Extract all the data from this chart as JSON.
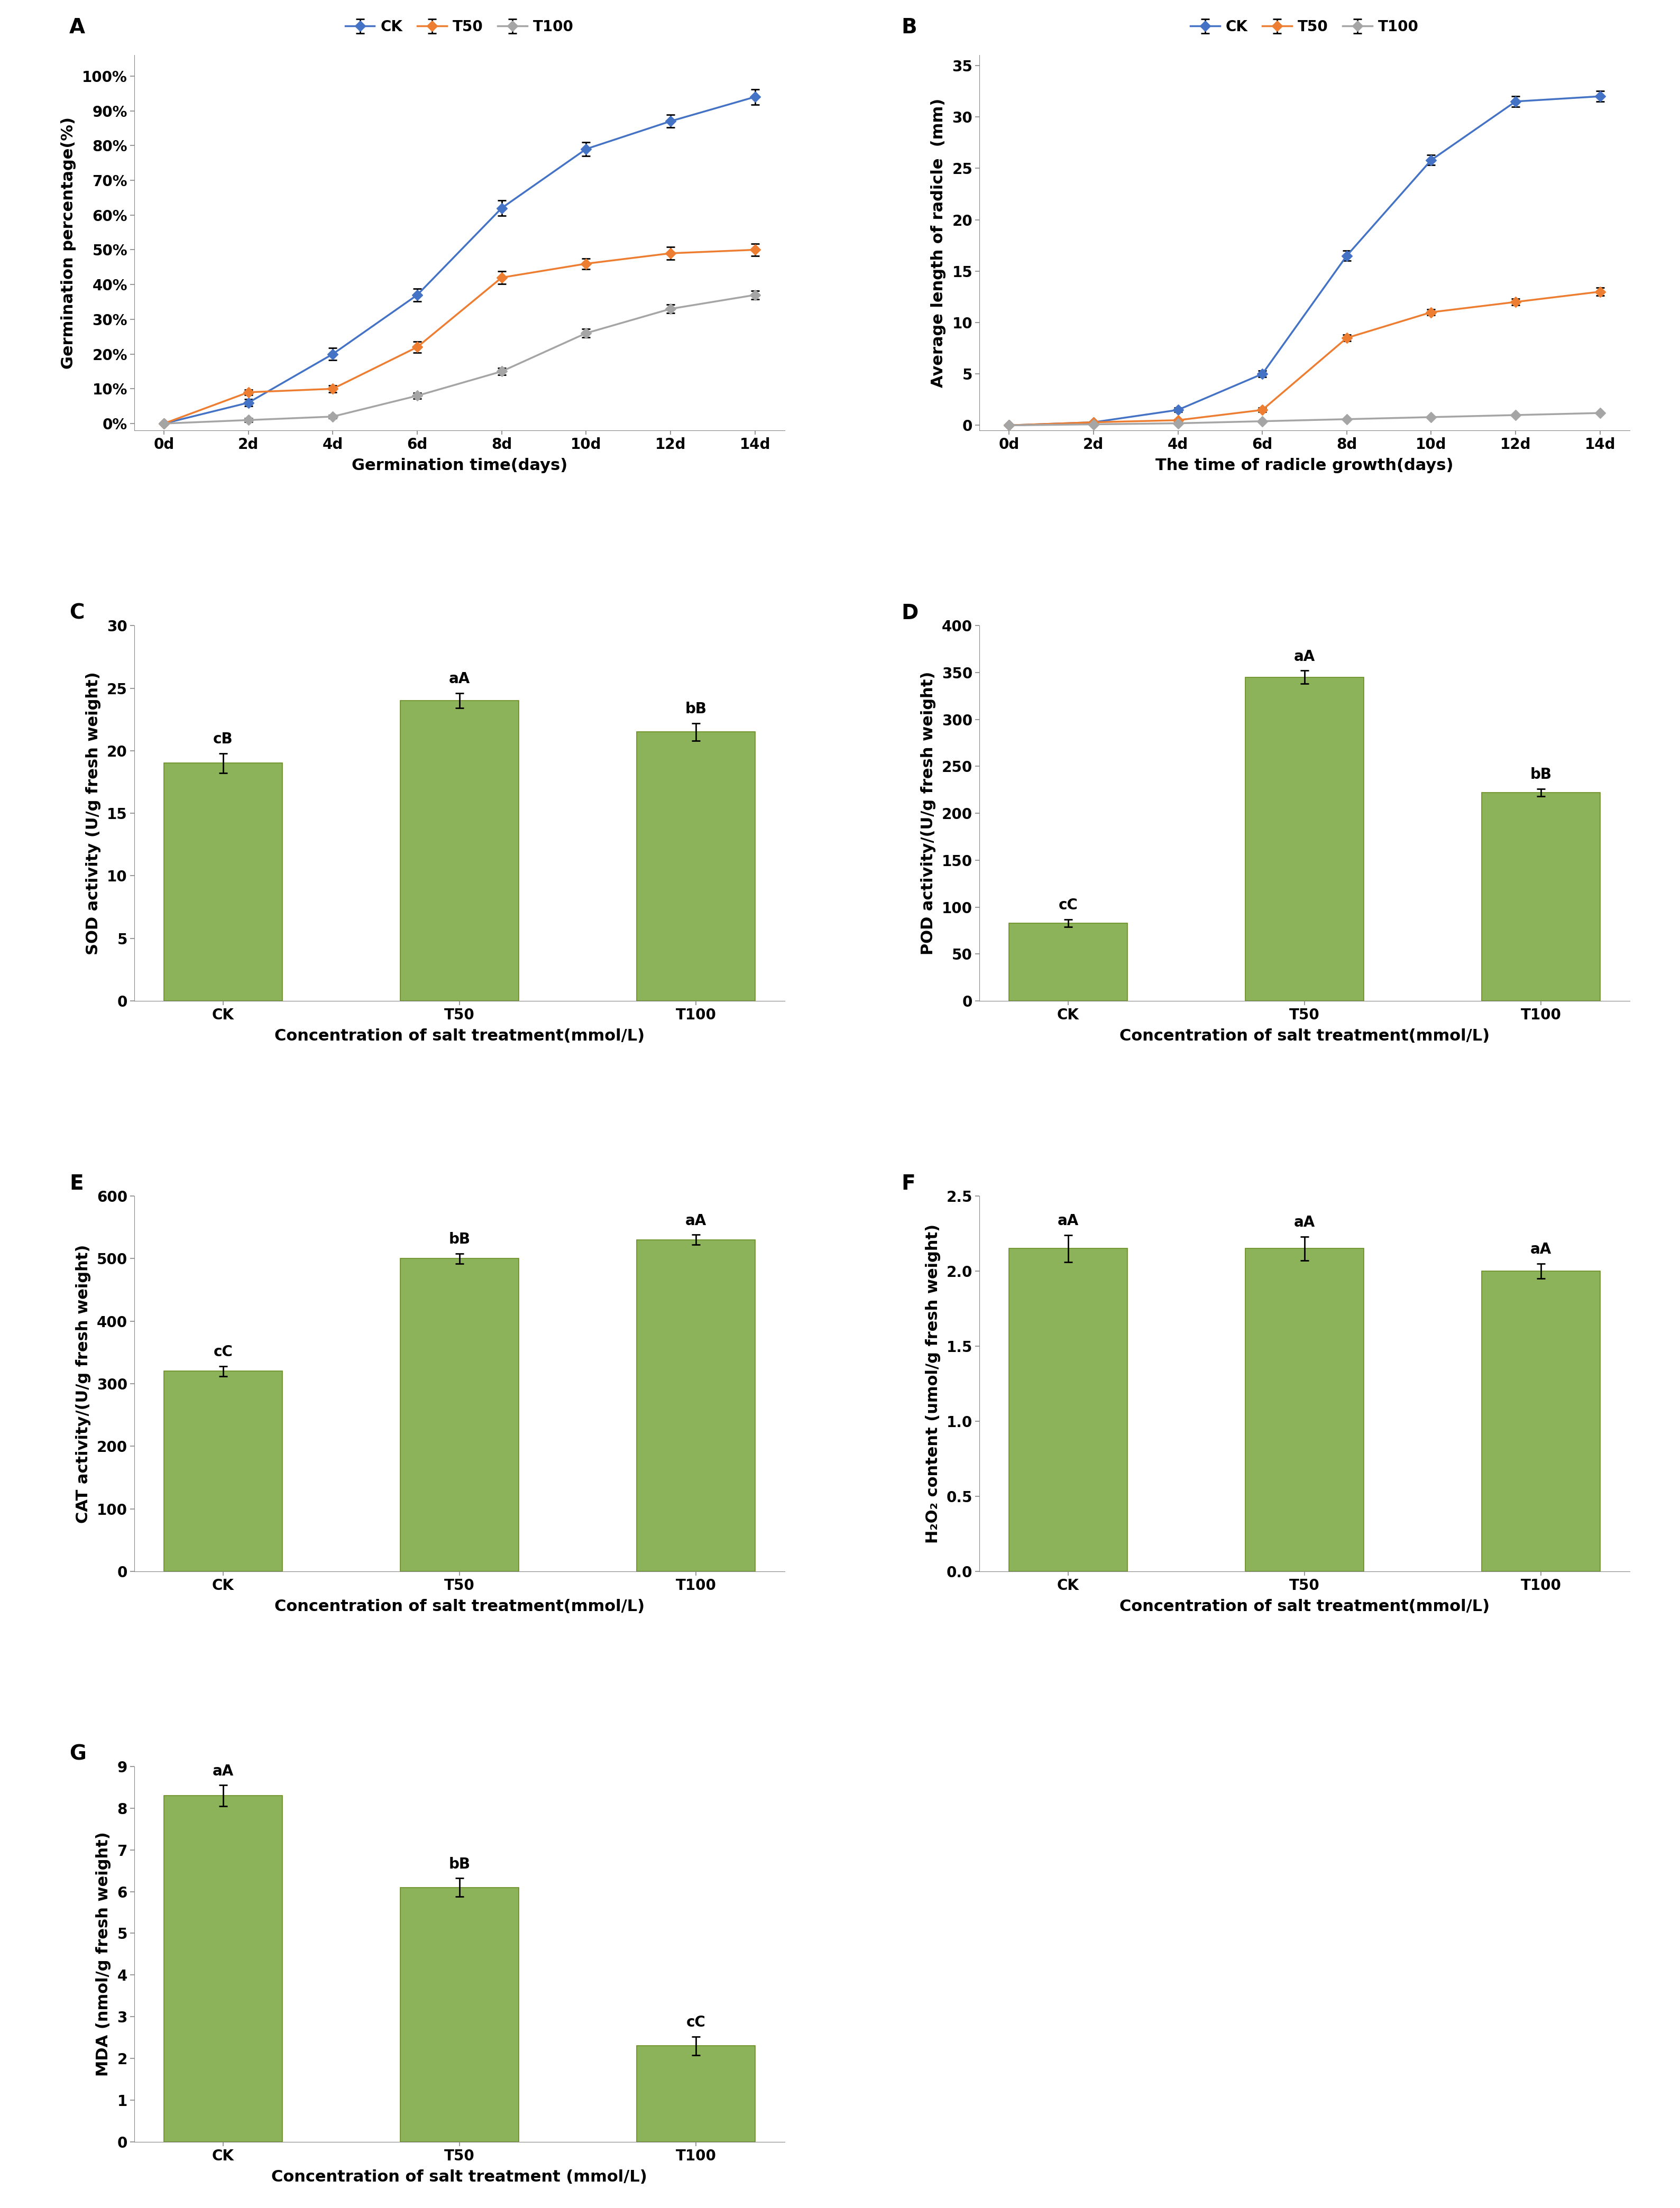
{
  "panel_A": {
    "label": "A",
    "x": [
      0,
      2,
      4,
      6,
      8,
      10,
      12,
      14
    ],
    "CK_y": [
      0,
      0.06,
      0.2,
      0.37,
      0.62,
      0.79,
      0.87,
      0.94
    ],
    "T50_y": [
      0,
      0.09,
      0.1,
      0.22,
      0.42,
      0.46,
      0.49,
      0.5
    ],
    "T100_y": [
      0,
      0.01,
      0.02,
      0.08,
      0.15,
      0.26,
      0.33,
      0.37
    ],
    "CK_err": [
      0,
      0.01,
      0.018,
      0.018,
      0.022,
      0.02,
      0.018,
      0.022
    ],
    "T50_err": [
      0,
      0.008,
      0.01,
      0.016,
      0.018,
      0.015,
      0.018,
      0.018
    ],
    "T100_err": [
      0,
      0.005,
      0.005,
      0.008,
      0.01,
      0.012,
      0.012,
      0.012
    ],
    "xlabel": "Germination time(days)",
    "ylabel": "Germination percentage(%)",
    "yticks": [
      0.0,
      0.1,
      0.2,
      0.3,
      0.4,
      0.5,
      0.6,
      0.7,
      0.8,
      0.9,
      1.0
    ],
    "ytick_labels": [
      "0%",
      "10%",
      "20%",
      "30%",
      "40%",
      "50%",
      "60%",
      "70%",
      "80%",
      "90%",
      "100%"
    ],
    "xtick_labels": [
      "0d",
      "2d",
      "4d",
      "6d",
      "8d",
      "10d",
      "12d",
      "14d"
    ],
    "ylim": [
      -0.02,
      1.06
    ]
  },
  "panel_B": {
    "label": "B",
    "x": [
      0,
      2,
      4,
      6,
      8,
      10,
      12,
      14
    ],
    "CK_y": [
      0,
      0.3,
      1.5,
      5.0,
      16.5,
      25.8,
      31.5,
      32.0
    ],
    "T50_y": [
      0,
      0.3,
      0.5,
      1.5,
      8.5,
      11.0,
      12.0,
      13.0
    ],
    "T100_y": [
      0,
      0.1,
      0.2,
      0.4,
      0.6,
      0.8,
      1.0,
      1.2
    ],
    "CK_err": [
      0,
      0.1,
      0.2,
      0.3,
      0.5,
      0.5,
      0.5,
      0.5
    ],
    "T50_err": [
      0,
      0.1,
      0.1,
      0.2,
      0.3,
      0.3,
      0.3,
      0.4
    ],
    "T100_err": [
      0,
      0.05,
      0.05,
      0.05,
      0.05,
      0.05,
      0.05,
      0.05
    ],
    "xlabel": "The time of radicle growth(days)",
    "ylabel": "Average length of radicle  (mm)",
    "yticks": [
      0,
      5,
      10,
      15,
      20,
      25,
      30,
      35
    ],
    "xtick_labels": [
      "0d",
      "2d",
      "4d",
      "6d",
      "8d",
      "10d",
      "12d",
      "14d"
    ],
    "ylim": [
      -0.5,
      36
    ]
  },
  "panel_C": {
    "label": "C",
    "categories": [
      "CK",
      "T50",
      "T100"
    ],
    "values": [
      19.0,
      24.0,
      21.5
    ],
    "errors": [
      0.8,
      0.6,
      0.7
    ],
    "letters_top": [
      "cB",
      "aA",
      "bB"
    ],
    "xlabel": "Concentration of salt treatment(mmol/L)",
    "ylabel": "SOD activity (U/g fresh weight)",
    "ylim": [
      0,
      30
    ],
    "yticks": [
      0,
      5,
      10,
      15,
      20,
      25,
      30
    ]
  },
  "panel_D": {
    "label": "D",
    "categories": [
      "CK",
      "T50",
      "T100"
    ],
    "values": [
      83.0,
      345.0,
      222.0
    ],
    "errors": [
      4.0,
      7.0,
      4.0
    ],
    "letters_top": [
      "cC",
      "aA",
      "bB"
    ],
    "xlabel": "Concentration of salt treatment(mmol/L)",
    "ylabel": "POD activity/(U/g fresh weight)",
    "ylim": [
      0,
      400
    ],
    "yticks": [
      0,
      50,
      100,
      150,
      200,
      250,
      300,
      350,
      400
    ]
  },
  "panel_E": {
    "label": "E",
    "categories": [
      "CK",
      "T50",
      "T100"
    ],
    "values": [
      320.0,
      500.0,
      530.0
    ],
    "errors": [
      8.0,
      8.0,
      8.0
    ],
    "letters_top": [
      "cC",
      "bB",
      "aA"
    ],
    "xlabel": "Concentration of salt treatment(mmol/L)",
    "ylabel": "CAT activity/(U/g fresh weight)",
    "ylim": [
      0,
      600
    ],
    "yticks": [
      0,
      100,
      200,
      300,
      400,
      500,
      600
    ]
  },
  "panel_F": {
    "label": "F",
    "categories": [
      "CK",
      "T50",
      "T100"
    ],
    "values": [
      2.15,
      2.15,
      2.0
    ],
    "errors": [
      0.09,
      0.08,
      0.05
    ],
    "letters_top": [
      "aA",
      "aA",
      "aA"
    ],
    "xlabel": "Concentration of salt treatment(mmol/L)",
    "ylabel": "H₂O₂ content (umol/g fresh weight)",
    "ylim": [
      0.0,
      2.5
    ],
    "yticks": [
      0.0,
      0.5,
      1.0,
      1.5,
      2.0,
      2.5
    ]
  },
  "panel_G": {
    "label": "G",
    "categories": [
      "CK",
      "T50",
      "T100"
    ],
    "values": [
      8.3,
      6.1,
      2.3
    ],
    "errors": [
      0.25,
      0.22,
      0.22
    ],
    "letters_top": [
      "aA",
      "bB",
      "cC"
    ],
    "xlabel": "Concentration of salt treatment (mmol/L)",
    "ylabel": "MDA (nmol/g fresh weight)",
    "ylim": [
      0,
      9
    ],
    "yticks": [
      0,
      1,
      2,
      3,
      4,
      5,
      6,
      7,
      8,
      9
    ]
  },
  "line_colors": {
    "CK": "#4472C4",
    "T50": "#ED7D31",
    "T100": "#A5A5A5"
  },
  "bar_color": "#8DB35A",
  "bar_edge_color": "#6B8E23",
  "background_color": "#FFFFFF"
}
